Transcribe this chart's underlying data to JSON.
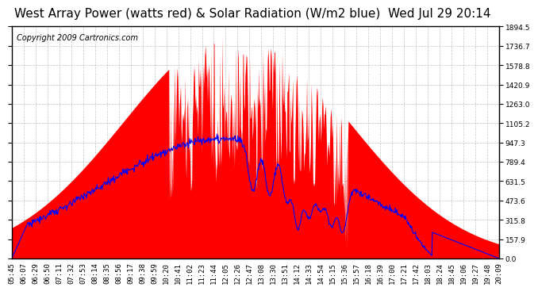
{
  "title": "West Array Power (watts red) & Solar Radiation (W/m2 blue)  Wed Jul 29 20:14",
  "copyright_text": "Copyright 2009 Cartronics.com",
  "background_color": "#ffffff",
  "plot_bg_color": "#ffffff",
  "grid_color": "#aaaaaa",
  "y_max": 1894.5,
  "y_min": 0.0,
  "y_ticks": [
    0.0,
    157.9,
    315.8,
    473.6,
    631.5,
    789.4,
    947.3,
    1105.2,
    1263.0,
    1420.9,
    1578.8,
    1736.7,
    1894.5
  ],
  "x_labels": [
    "05:45",
    "06:07",
    "06:29",
    "06:50",
    "07:11",
    "07:32",
    "07:53",
    "08:14",
    "08:35",
    "08:56",
    "09:17",
    "09:38",
    "09:59",
    "10:20",
    "10:41",
    "11:02",
    "11:23",
    "11:44",
    "12:05",
    "12:26",
    "12:47",
    "13:08",
    "13:30",
    "13:51",
    "14:12",
    "14:33",
    "14:54",
    "15:15",
    "15:36",
    "15:57",
    "16:18",
    "16:39",
    "17:00",
    "17:21",
    "17:42",
    "18:03",
    "18:24",
    "18:45",
    "19:06",
    "19:27",
    "19:48",
    "20:09"
  ],
  "red_fill_color": "#ff0000",
  "blue_line_color": "#0000ff",
  "title_fontsize": 11,
  "copyright_fontsize": 7,
  "tick_fontsize": 6.5
}
